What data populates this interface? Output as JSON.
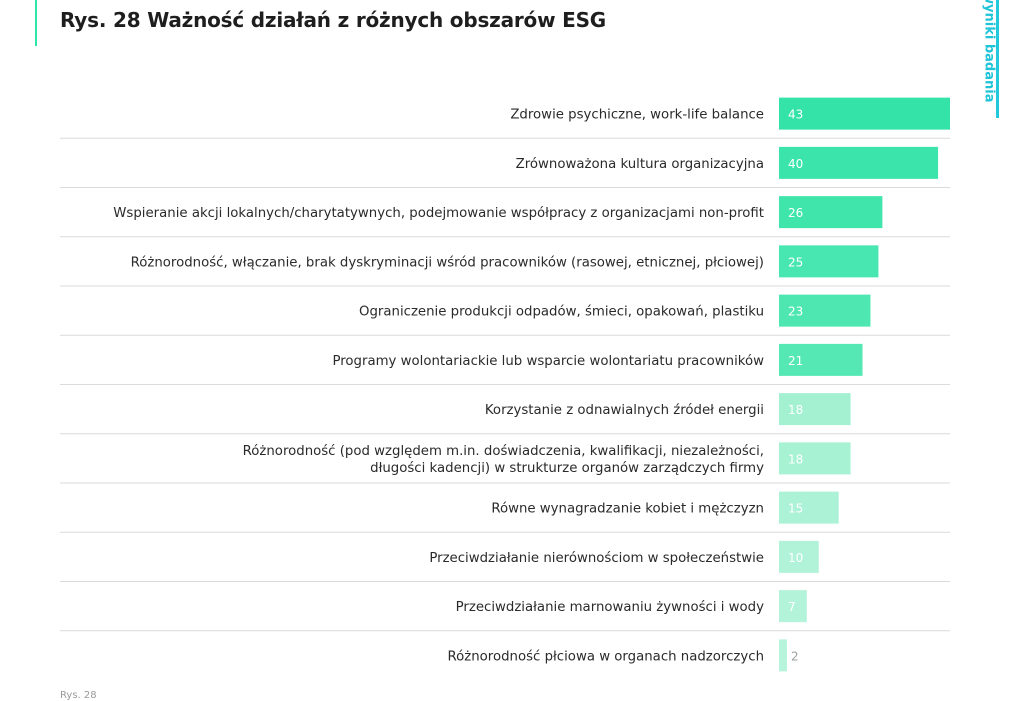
{
  "title": "Rys. 28 Ważność działań z różnych obszarów ESG",
  "side_tab": "wyniki badania",
  "footer_note": "Rys. 28",
  "colors": {
    "bar_strong": "#34e3a7",
    "bar_light": "#8feec8",
    "label_text": "#2a2a2a",
    "value_text": "#ffffff",
    "value_text_small": "#9aa3a0",
    "divider": "#d9dcdb",
    "accent": "#22c9dc"
  },
  "chart_data": {
    "type": "bar",
    "orientation": "horizontal",
    "title": "Rys. 28 Ważność działań z różnych obszarów ESG",
    "xlabel": "",
    "ylabel": "",
    "xlim": [
      0,
      43
    ],
    "categories": [
      [
        "Zdrowie psychiczne, work-life balance"
      ],
      [
        "Zrównoważona kultura organizacyjna"
      ],
      [
        "Wspieranie akcji lokalnych/charytatywnych, podejmowanie współpracy z organizacjami non-profit"
      ],
      [
        "Różnorodność, włączanie, brak dyskryminacji wśród pracowników (rasowej, etnicznej, płciowej)"
      ],
      [
        "Ograniczenie produkcji odpadów, śmieci, opakowań, plastiku"
      ],
      [
        "Programy wolontariackie lub wsparcie wolontariatu pracowników"
      ],
      [
        "Korzystanie z odnawialnych źródeł energii"
      ],
      [
        "Różnorodność (pod względem m.in. doświadczenia, kwalifikacji, niezależności,",
        "długości kadencji) w strukturze organów zarządczych firmy"
      ],
      [
        "Równe wynagradzanie kobiet i mężczyzn"
      ],
      [
        "Przeciwdziałanie nierównościom w społeczeństwie"
      ],
      [
        "Przeciwdziałanie marnowaniu żywności i wody"
      ],
      [
        "Różnorodność płciowa w organach nadzorczych"
      ]
    ],
    "values": [
      43,
      40,
      26,
      25,
      23,
      21,
      18,
      18,
      15,
      10,
      7,
      2
    ]
  }
}
